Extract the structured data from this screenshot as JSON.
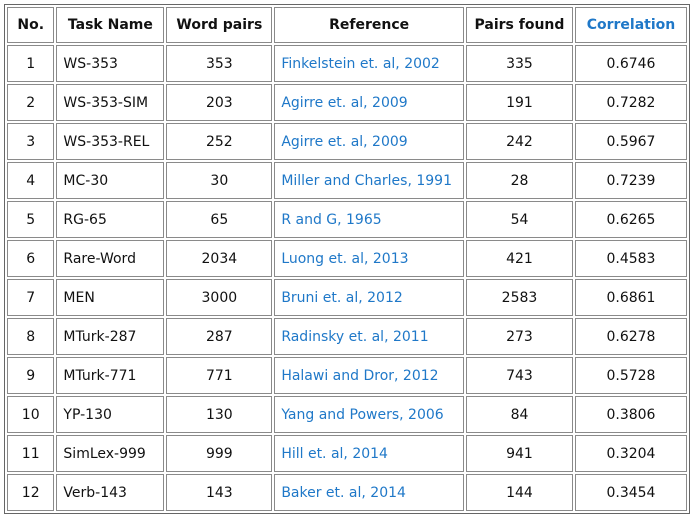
{
  "table": {
    "headers": {
      "no": "No.",
      "task_name": "Task Name",
      "word_pairs": "Word pairs",
      "reference": "Reference",
      "pairs_found": "Pairs found",
      "correlation": "Correlation"
    },
    "rows": [
      {
        "no": "1",
        "task_name": "WS-353",
        "word_pairs": "353",
        "reference": "Finkelstein et. al, 2002",
        "pairs_found": "335",
        "correlation": "0.6746"
      },
      {
        "no": "2",
        "task_name": "WS-353-SIM",
        "word_pairs": "203",
        "reference": "Agirre et. al, 2009",
        "pairs_found": "191",
        "correlation": "0.7282"
      },
      {
        "no": "3",
        "task_name": "WS-353-REL",
        "word_pairs": "252",
        "reference": "Agirre et. al, 2009",
        "pairs_found": "242",
        "correlation": "0.5967"
      },
      {
        "no": "4",
        "task_name": "MC-30",
        "word_pairs": "30",
        "reference": "Miller and Charles, 1991",
        "pairs_found": "28",
        "correlation": "0.7239"
      },
      {
        "no": "5",
        "task_name": "RG-65",
        "word_pairs": "65",
        "reference": "R and G, 1965",
        "pairs_found": "54",
        "correlation": "0.6265"
      },
      {
        "no": "6",
        "task_name": "Rare-Word",
        "word_pairs": "2034",
        "reference": "Luong et. al, 2013",
        "pairs_found": "421",
        "correlation": "0.4583"
      },
      {
        "no": "7",
        "task_name": "MEN",
        "word_pairs": "3000",
        "reference": "Bruni et. al, 2012",
        "pairs_found": "2583",
        "correlation": "0.6861"
      },
      {
        "no": "8",
        "task_name": "MTurk-287",
        "word_pairs": "287",
        "reference": "Radinsky et. al, 2011",
        "pairs_found": "273",
        "correlation": "0.6278"
      },
      {
        "no": "9",
        "task_name": "MTurk-771",
        "word_pairs": "771",
        "reference": "Halawi and Dror, 2012",
        "pairs_found": "743",
        "correlation": "0.5728"
      },
      {
        "no": "10",
        "task_name": "YP-130",
        "word_pairs": "130",
        "reference": "Yang and Powers, 2006",
        "pairs_found": "84",
        "correlation": "0.3806"
      },
      {
        "no": "11",
        "task_name": "SimLex-999",
        "word_pairs": "999",
        "reference": "Hill et. al, 2014",
        "pairs_found": "941",
        "correlation": "0.3204"
      },
      {
        "no": "12",
        "task_name": "Verb-143",
        "word_pairs": "143",
        "reference": "Baker et. al, 2014",
        "pairs_found": "144",
        "correlation": "0.3454"
      }
    ]
  },
  "colors": {
    "accent": "#1f78c8",
    "text": "#111111",
    "border": "#8a8a8a"
  }
}
